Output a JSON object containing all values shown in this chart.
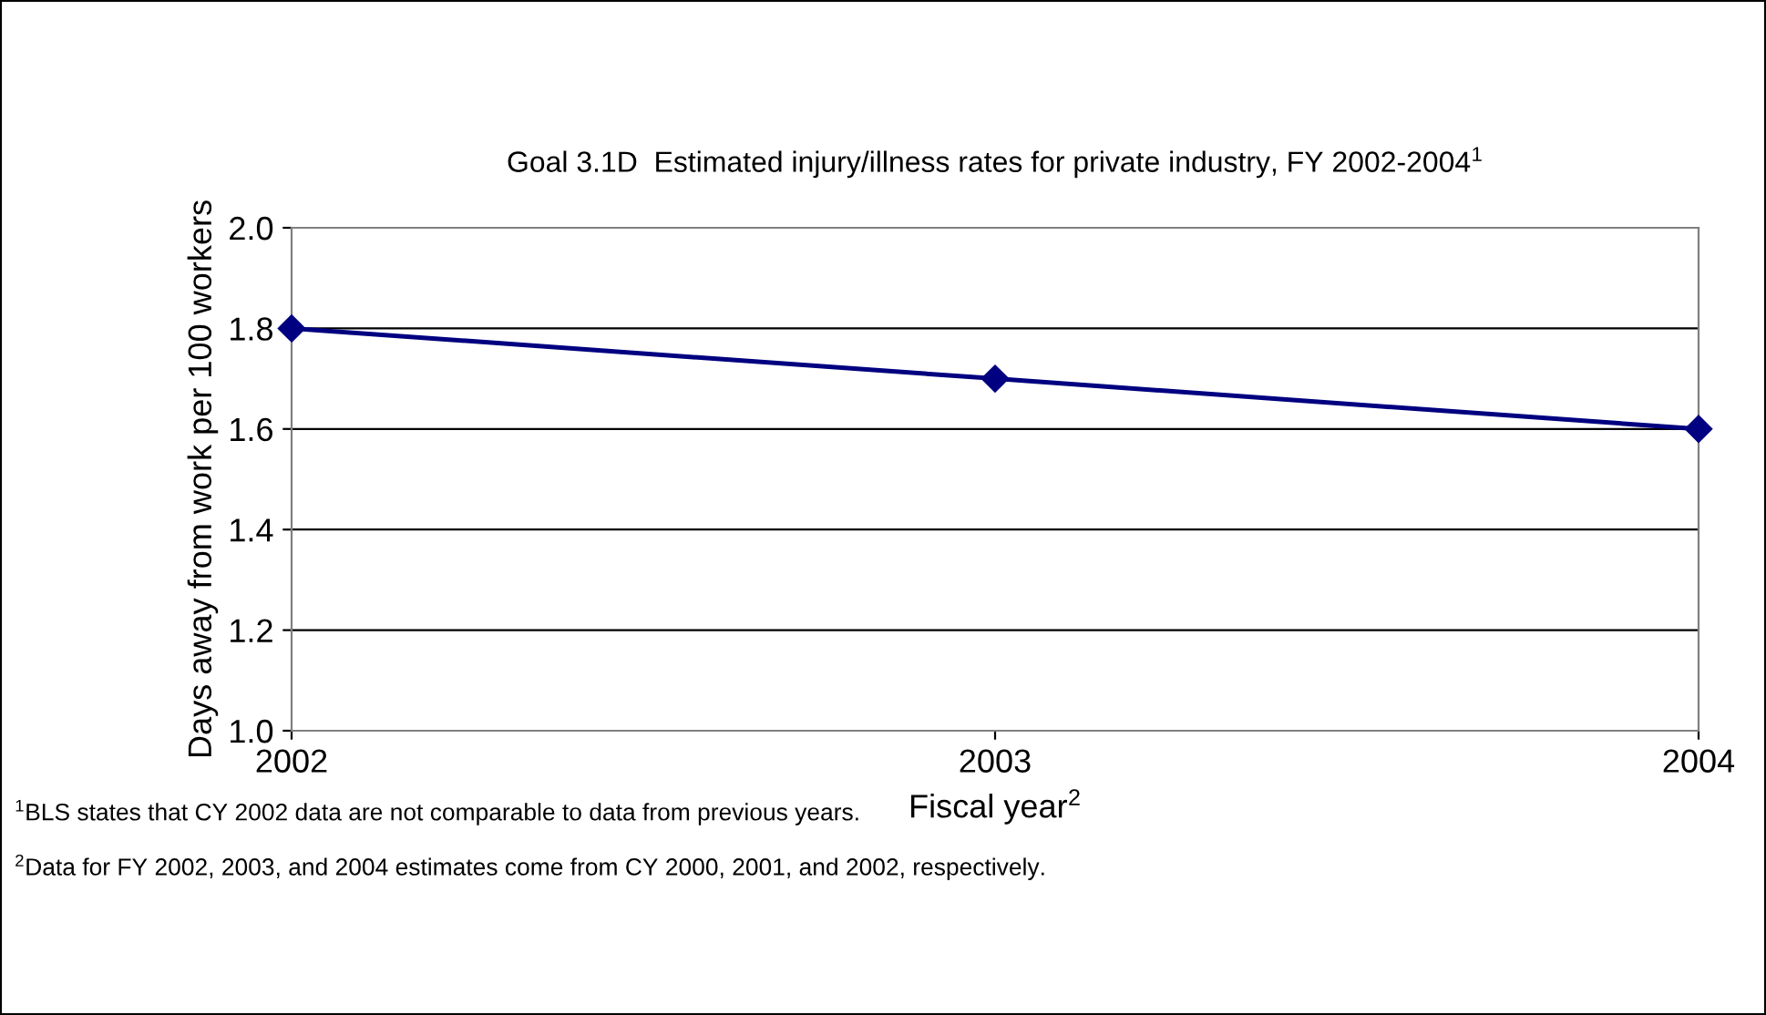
{
  "chart_data": {
    "type": "line",
    "title": "Goal 3.1D  Estimated injury/illness rates for private industry, FY 2002-2004$^{1}$",
    "xlabel": "Fiscal year$^{2}$",
    "ylabel": "Days away from work per 100 workers",
    "x": [
      2002,
      2003,
      2004
    ],
    "series": [
      {
        "color": "#000080",
        "values": [
          1.8,
          1.7,
          1.6
        ]
      }
    ],
    "xlim": [
      2002,
      2004
    ],
    "xticks": [
      2002,
      2003,
      2004
    ],
    "ylim": [
      1.0,
      2.0
    ],
    "yticks": [
      {
        "value": 1.0,
        "label": "1.0"
      },
      {
        "value": 1.2,
        "label": "1.2"
      },
      {
        "value": 1.4,
        "label": "1.4"
      },
      {
        "value": 1.6,
        "label": "1.6"
      },
      {
        "value": 1.8,
        "label": "1.8"
      },
      {
        "value": 2.0,
        "label": "2.0"
      }
    ],
    "grid": "y",
    "marker": "diamond",
    "line_style": "solid",
    "annotations": [
      "$^{1}$BLS states that CY 2002 data are not comparable to data from previous years.",
      "$^{2}$Data for FY 2002, 2003, and 2004 estimates come from CY 2000, 2001, and 2002, respectively."
    ]
  }
}
